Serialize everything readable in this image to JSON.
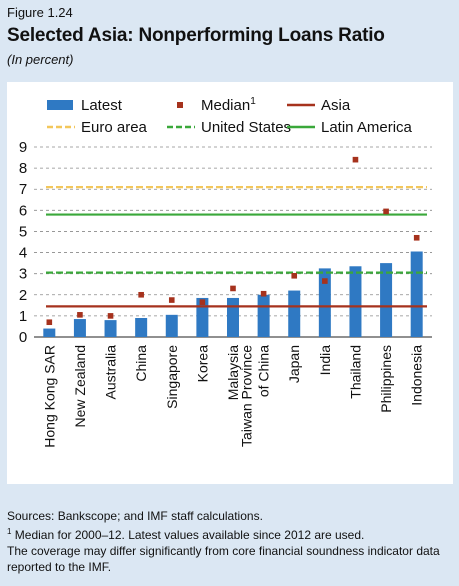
{
  "figure_label": "Figure 1.24",
  "title": "Selected Asia: Nonperforming Loans Ratio",
  "subtitle": "(In percent)",
  "notes": {
    "sources": "Sources: Bankscope; and IMF staff calculations.",
    "footnote_mark": "1",
    "footnote": " Median for 2000–12. Latest values available since 2012 are used.",
    "coverage": "The coverage may differ significantly from core financial soundness indicator data reported to the IMF."
  },
  "colors": {
    "latest": "#2f79c3",
    "median": "#a6321d",
    "asia": "#a6321d",
    "euro_area": "#f3c75b",
    "united_states": "#3aa83a",
    "latin_america": "#3aa83a"
  },
  "chart_data": {
    "type": "bar",
    "title": "Selected Asia: Nonperforming Loans Ratio",
    "ylabel": "",
    "ylim": [
      0,
      9
    ],
    "yticks": [
      0,
      1,
      2,
      3,
      4,
      5,
      6,
      7,
      8,
      9
    ],
    "grid": true,
    "categories": [
      "Hong Kong SAR",
      "New Zealand",
      "Australia",
      "China",
      "Singapore",
      "Korea",
      "Malaysia",
      "Taiwan Province of China",
      "Japan",
      "India",
      "Thailand",
      "Philippines",
      "Indonesia"
    ],
    "category_lines": [
      [
        "Hong Kong SAR"
      ],
      [
        "New Zealand"
      ],
      [
        "Australia"
      ],
      [
        "China"
      ],
      [
        "Singapore"
      ],
      [
        "Korea"
      ],
      [
        "Malaysia"
      ],
      [
        "Taiwan Province",
        "of China"
      ],
      [
        "Japan"
      ],
      [
        "India"
      ],
      [
        "Thailand"
      ],
      [
        "Philippines"
      ],
      [
        "Indonesia"
      ]
    ],
    "series": [
      {
        "name": "Latest",
        "kind": "bar",
        "values": [
          0.4,
          0.85,
          0.8,
          0.9,
          1.05,
          1.85,
          1.85,
          2.0,
          2.2,
          3.25,
          3.35,
          3.5,
          4.05
        ]
      },
      {
        "name": "Median",
        "name_sup": "1",
        "kind": "marker",
        "values": [
          0.7,
          1.05,
          1.0,
          2.0,
          1.75,
          1.65,
          2.3,
          2.05,
          2.9,
          2.65,
          8.4,
          5.95,
          4.7
        ]
      },
      {
        "name": "Asia",
        "kind": "hline",
        "value": 1.45
      },
      {
        "name": "Euro area",
        "kind": "hline",
        "value": 7.1,
        "dash": true
      },
      {
        "name": "United States",
        "kind": "hline",
        "value": 3.05,
        "dash": true
      },
      {
        "name": "Latin America",
        "kind": "hline",
        "value": 5.8
      }
    ],
    "legend": [
      {
        "name": "Latest",
        "sup": "",
        "kind": "bar",
        "color": "#2f79c3"
      },
      {
        "name": "Median",
        "sup": "1",
        "kind": "marker",
        "color": "#a6321d"
      },
      {
        "name": "Asia",
        "sup": "",
        "kind": "line",
        "color": "#a6321d"
      },
      {
        "name": "Euro area",
        "sup": "",
        "kind": "dash",
        "color": "#f3c75b"
      },
      {
        "name": "United States",
        "sup": "",
        "kind": "dash",
        "color": "#3aa83a"
      },
      {
        "name": "Latin America",
        "sup": "",
        "kind": "line",
        "color": "#3aa83a"
      }
    ],
    "legend_placement": "top"
  }
}
